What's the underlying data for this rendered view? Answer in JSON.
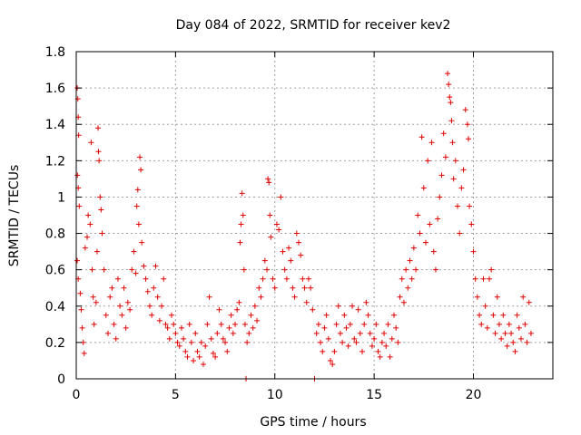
{
  "chart_data": {
    "type": "scatter",
    "title": "Day 084 of 2022, SRMTID for receiver kev2",
    "xlabel": "GPS time / hours",
    "ylabel": "SRMTID / TECUs",
    "xlim": [
      0,
      24
    ],
    "ylim": [
      0,
      1.8
    ],
    "grid": true,
    "marker": "+",
    "series_color": "#e00000",
    "x_ticks": [
      0,
      5,
      10,
      15,
      20
    ],
    "x_tick_labels": [
      "0",
      "5",
      "10",
      "15",
      "20"
    ],
    "y_ticks": [
      0,
      0.2,
      0.4,
      0.6,
      0.8,
      1.0,
      1.2,
      1.4,
      1.6,
      1.8
    ],
    "y_tick_labels": [
      "0",
      "0.2",
      "0.4",
      "0.6",
      "0.8",
      "1",
      "1.2",
      "1.4",
      "1.6",
      "1.8"
    ],
    "series": [
      {
        "name": "kev2",
        "points": [
          [
            0.05,
            1.6
          ],
          [
            0.08,
            1.54
          ],
          [
            0.1,
            1.44
          ],
          [
            0.12,
            1.34
          ],
          [
            0.06,
            1.12
          ],
          [
            0.1,
            1.05
          ],
          [
            0.15,
            0.95
          ],
          [
            0.05,
            0.65
          ],
          [
            0.1,
            0.55
          ],
          [
            0.2,
            0.47
          ],
          [
            0.25,
            0.38
          ],
          [
            0.3,
            0.28
          ],
          [
            0.35,
            0.2
          ],
          [
            0.4,
            0.14
          ],
          [
            0.45,
            0.72
          ],
          [
            0.55,
            0.78
          ],
          [
            0.6,
            0.9
          ],
          [
            0.7,
            0.85
          ],
          [
            0.75,
            1.3
          ],
          [
            0.8,
            0.6
          ],
          [
            0.85,
            0.45
          ],
          [
            0.9,
            0.3
          ],
          [
            1.0,
            0.42
          ],
          [
            1.05,
            0.7
          ],
          [
            1.1,
            1.38
          ],
          [
            1.12,
            1.25
          ],
          [
            1.15,
            1.2
          ],
          [
            1.2,
            1.0
          ],
          [
            1.25,
            0.93
          ],
          [
            1.3,
            0.8
          ],
          [
            1.4,
            0.6
          ],
          [
            1.5,
            0.35
          ],
          [
            1.6,
            0.25
          ],
          [
            1.7,
            0.45
          ],
          [
            1.8,
            0.5
          ],
          [
            1.9,
            0.3
          ],
          [
            2.0,
            0.22
          ],
          [
            2.1,
            0.55
          ],
          [
            2.2,
            0.4
          ],
          [
            2.3,
            0.35
          ],
          [
            2.4,
            0.5
          ],
          [
            2.5,
            0.28
          ],
          [
            2.6,
            0.42
          ],
          [
            2.7,
            0.38
          ],
          [
            2.8,
            0.6
          ],
          [
            2.9,
            0.7
          ],
          [
            3.0,
            0.58
          ],
          [
            3.05,
            0.95
          ],
          [
            3.1,
            1.04
          ],
          [
            3.15,
            0.85
          ],
          [
            3.2,
            1.22
          ],
          [
            3.25,
            1.15
          ],
          [
            3.3,
            0.75
          ],
          [
            3.4,
            0.62
          ],
          [
            3.5,
            0.55
          ],
          [
            3.6,
            0.48
          ],
          [
            3.7,
            0.4
          ],
          [
            3.8,
            0.35
          ],
          [
            3.9,
            0.5
          ],
          [
            4.0,
            0.62
          ],
          [
            4.1,
            0.45
          ],
          [
            4.2,
            0.32
          ],
          [
            4.3,
            0.4
          ],
          [
            4.4,
            0.55
          ],
          [
            4.5,
            0.3
          ],
          [
            4.6,
            0.28
          ],
          [
            4.7,
            0.22
          ],
          [
            4.8,
            0.35
          ],
          [
            4.9,
            0.3
          ],
          [
            5.0,
            0.25
          ],
          [
            5.1,
            0.2
          ],
          [
            5.2,
            0.18
          ],
          [
            5.3,
            0.28
          ],
          [
            5.4,
            0.22
          ],
          [
            5.5,
            0.15
          ],
          [
            5.6,
            0.12
          ],
          [
            5.7,
            0.3
          ],
          [
            5.8,
            0.2
          ],
          [
            5.9,
            0.1
          ],
          [
            6.0,
            0.25
          ],
          [
            6.1,
            0.15
          ],
          [
            6.2,
            0.12
          ],
          [
            6.3,
            0.2
          ],
          [
            6.4,
            0.08
          ],
          [
            6.5,
            0.18
          ],
          [
            6.6,
            0.3
          ],
          [
            6.7,
            0.45
          ],
          [
            6.8,
            0.22
          ],
          [
            6.9,
            0.14
          ],
          [
            7.0,
            0.12
          ],
          [
            7.1,
            0.25
          ],
          [
            7.2,
            0.38
          ],
          [
            7.3,
            0.3
          ],
          [
            7.4,
            0.22
          ],
          [
            7.5,
            0.2
          ],
          [
            7.6,
            0.15
          ],
          [
            7.7,
            0.28
          ],
          [
            7.8,
            0.35
          ],
          [
            7.9,
            0.25
          ],
          [
            8.0,
            0.3
          ],
          [
            8.1,
            0.38
          ],
          [
            8.2,
            0.42
          ],
          [
            8.25,
            0.75
          ],
          [
            8.3,
            0.85
          ],
          [
            8.35,
            1.02
          ],
          [
            8.4,
            0.9
          ],
          [
            8.45,
            0.6
          ],
          [
            8.5,
            0.3
          ],
          [
            8.55,
            0.0
          ],
          [
            8.6,
            0.2
          ],
          [
            8.7,
            0.25
          ],
          [
            8.8,
            0.35
          ],
          [
            8.9,
            0.28
          ],
          [
            9.0,
            0.4
          ],
          [
            9.1,
            0.32
          ],
          [
            9.2,
            0.5
          ],
          [
            9.3,
            0.45
          ],
          [
            9.4,
            0.55
          ],
          [
            9.5,
            0.65
          ],
          [
            9.6,
            0.6
          ],
          [
            9.65,
            1.1
          ],
          [
            9.7,
            1.08
          ],
          [
            9.75,
            0.9
          ],
          [
            9.8,
            0.78
          ],
          [
            9.9,
            0.55
          ],
          [
            10.0,
            0.5
          ],
          [
            10.1,
            0.85
          ],
          [
            10.2,
            0.82
          ],
          [
            10.3,
            1.0
          ],
          [
            10.4,
            0.7
          ],
          [
            10.5,
            0.6
          ],
          [
            10.6,
            0.55
          ],
          [
            10.7,
            0.72
          ],
          [
            10.8,
            0.65
          ],
          [
            10.9,
            0.5
          ],
          [
            11.0,
            0.45
          ],
          [
            11.1,
            0.8
          ],
          [
            11.2,
            0.75
          ],
          [
            11.3,
            0.68
          ],
          [
            11.4,
            0.55
          ],
          [
            11.5,
            0.5
          ],
          [
            11.6,
            0.42
          ],
          [
            11.7,
            0.55
          ],
          [
            11.8,
            0.5
          ],
          [
            11.9,
            0.38
          ],
          [
            12.0,
            0.0
          ],
          [
            12.1,
            0.25
          ],
          [
            12.2,
            0.3
          ],
          [
            12.3,
            0.2
          ],
          [
            12.4,
            0.15
          ],
          [
            12.5,
            0.28
          ],
          [
            12.6,
            0.35
          ],
          [
            12.7,
            0.22
          ],
          [
            12.8,
            0.1
          ],
          [
            12.9,
            0.08
          ],
          [
            13.0,
            0.15
          ],
          [
            13.1,
            0.3
          ],
          [
            13.2,
            0.4
          ],
          [
            13.3,
            0.25
          ],
          [
            13.4,
            0.2
          ],
          [
            13.5,
            0.35
          ],
          [
            13.6,
            0.28
          ],
          [
            13.7,
            0.18
          ],
          [
            13.8,
            0.3
          ],
          [
            13.9,
            0.4
          ],
          [
            14.0,
            0.22
          ],
          [
            14.1,
            0.2
          ],
          [
            14.2,
            0.38
          ],
          [
            14.3,
            0.25
          ],
          [
            14.4,
            0.15
          ],
          [
            14.5,
            0.3
          ],
          [
            14.6,
            0.42
          ],
          [
            14.7,
            0.35
          ],
          [
            14.8,
            0.25
          ],
          [
            14.9,
            0.18
          ],
          [
            15.0,
            0.22
          ],
          [
            15.1,
            0.3
          ],
          [
            15.2,
            0.15
          ],
          [
            15.3,
            0.12
          ],
          [
            15.4,
            0.2
          ],
          [
            15.5,
            0.25
          ],
          [
            15.6,
            0.18
          ],
          [
            15.7,
            0.3
          ],
          [
            15.8,
            0.12
          ],
          [
            15.9,
            0.22
          ],
          [
            16.0,
            0.35
          ],
          [
            16.1,
            0.28
          ],
          [
            16.2,
            0.2
          ],
          [
            16.3,
            0.45
          ],
          [
            16.4,
            0.55
          ],
          [
            16.5,
            0.42
          ],
          [
            16.6,
            0.6
          ],
          [
            16.7,
            0.5
          ],
          [
            16.8,
            0.65
          ],
          [
            16.9,
            0.55
          ],
          [
            17.0,
            0.72
          ],
          [
            17.1,
            0.6
          ],
          [
            17.2,
            0.9
          ],
          [
            17.3,
            0.8
          ],
          [
            17.4,
            1.33
          ],
          [
            17.5,
            1.05
          ],
          [
            17.6,
            0.75
          ],
          [
            17.7,
            1.2
          ],
          [
            17.8,
            0.85
          ],
          [
            17.9,
            1.3
          ],
          [
            18.0,
            0.7
          ],
          [
            18.1,
            0.6
          ],
          [
            18.2,
            0.88
          ],
          [
            18.3,
            1.0
          ],
          [
            18.4,
            1.12
          ],
          [
            18.5,
            1.35
          ],
          [
            18.6,
            1.22
          ],
          [
            18.7,
            1.68
          ],
          [
            18.75,
            1.62
          ],
          [
            18.8,
            1.55
          ],
          [
            18.85,
            1.52
          ],
          [
            18.9,
            1.42
          ],
          [
            18.95,
            1.3
          ],
          [
            19.0,
            1.1
          ],
          [
            19.1,
            1.2
          ],
          [
            19.2,
            0.95
          ],
          [
            19.3,
            0.8
          ],
          [
            19.4,
            1.05
          ],
          [
            19.5,
            1.15
          ],
          [
            19.6,
            1.48
          ],
          [
            19.7,
            1.4
          ],
          [
            19.75,
            1.32
          ],
          [
            19.8,
            0.95
          ],
          [
            19.9,
            0.85
          ],
          [
            20.0,
            0.7
          ],
          [
            20.1,
            0.55
          ],
          [
            20.2,
            0.45
          ],
          [
            20.3,
            0.35
          ],
          [
            20.4,
            0.3
          ],
          [
            20.5,
            0.55
          ],
          [
            20.6,
            0.4
          ],
          [
            20.7,
            0.28
          ],
          [
            20.8,
            0.55
          ],
          [
            20.9,
            0.6
          ],
          [
            21.0,
            0.35
          ],
          [
            21.1,
            0.25
          ],
          [
            21.2,
            0.45
          ],
          [
            21.3,
            0.3
          ],
          [
            21.4,
            0.22
          ],
          [
            21.5,
            0.35
          ],
          [
            21.6,
            0.25
          ],
          [
            21.7,
            0.18
          ],
          [
            21.8,
            0.3
          ],
          [
            21.9,
            0.25
          ],
          [
            22.0,
            0.2
          ],
          [
            22.1,
            0.15
          ],
          [
            22.2,
            0.35
          ],
          [
            22.3,
            0.28
          ],
          [
            22.4,
            0.22
          ],
          [
            22.5,
            0.45
          ],
          [
            22.6,
            0.3
          ],
          [
            22.7,
            0.2
          ],
          [
            22.8,
            0.42
          ],
          [
            22.9,
            0.25
          ]
        ]
      }
    ]
  }
}
